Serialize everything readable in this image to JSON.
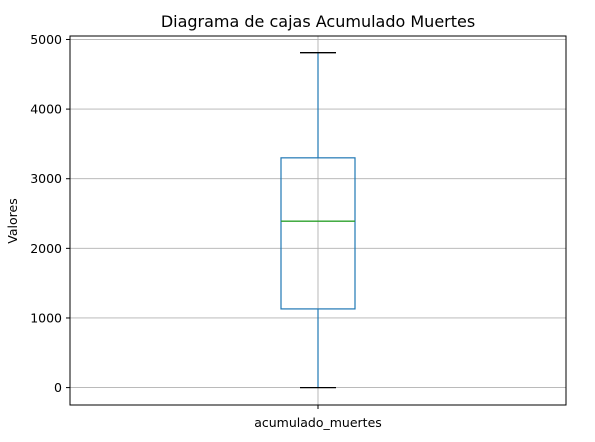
{
  "chart_data": {
    "type": "box",
    "title": "Diagrama de cajas Acumulado Muertes",
    "xlabel": "",
    "ylabel": "Valores",
    "ylim": [
      -250,
      5050
    ],
    "yticks": [
      0,
      1000,
      2000,
      3000,
      4000,
      5000
    ],
    "grid": true,
    "categories": [
      "acumulado_muertes"
    ],
    "boxes": [
      {
        "category": "acumulado_muertes",
        "whisker_low": 0,
        "q1": 1130,
        "median": 2390,
        "q3": 3300,
        "whisker_high": 4810
      }
    ],
    "colors": {
      "box": "#1f77b4",
      "median": "#2ca02c",
      "cap": "#000000",
      "grid": "#b0b0b0"
    }
  }
}
